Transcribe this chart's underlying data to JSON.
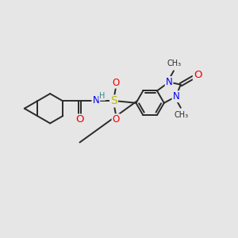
{
  "bg_color": "#e6e6e6",
  "bond_color": "#2a2a2a",
  "bond_width": 1.4,
  "atom_colors": {
    "N": "#0000ee",
    "O": "#ee0000",
    "S": "#bbbb00",
    "H": "#3a8888",
    "C": "#2a2a2a"
  },
  "font_size": 8.5,
  "font_size_small": 7.0
}
